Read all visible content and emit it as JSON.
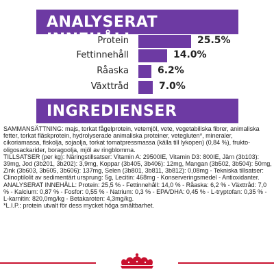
{
  "headings": {
    "analysis": "ANALYSERAT INNEHÅLL",
    "ingredients": "INGREDIENSER"
  },
  "nutrients": [
    {
      "label": "Protein",
      "value": "25.5%",
      "percent": 25.5
    },
    {
      "label": "Fettinnehåll",
      "value": "14.0%",
      "percent": 14.0
    },
    {
      "label": "Råaska",
      "value": "6.2%",
      "percent": 6.2
    },
    {
      "label": "Växttråd",
      "value": "7.0%",
      "percent": 7.0
    }
  ],
  "ingredients": {
    "composition": "SAMMANSÄTTNING: majs, torkat fågelprotein, vetemjöl, vete, vegetabiliska fibrer, animaliska fetter, torkat fläskprotein, hydrolyserade animaliska proteiner, vetegluten*, mineraler, cikoriamassa, fiskolja, sojaolja, torkat tomatpressmassa (källa till lykopen) (0,84 %), frukto-oligosackarider, boragoolja, mjöl av ringblomma.",
    "additives": "TILLSATSER (per kg): Näringstillsatser: Vitamin A: 29500IE, Vitamin D3: 800IE, Järn (3b103): 39mg, Jod (3b201, 3b202): 3,9mg, Koppar (3b405, 3b406): 12mg, Mangan (3b502, 3b504): 50mg, Zink (3b603, 3b605, 3b606): 137mg, Selen (3b801, 3b811, 3b812): 0,08mg - Tekniska tillsatser: Clinoptilolit av sedimentärt ursprung: 5g, Lecitin: 468mg - Konserveringsmedel - Antioxidanter.",
    "analysis": "ANALYSERAT INNEHÅLL: Protein: 25,5 % - Fettinnehåll: 14,0 % - Råaska: 6,2 % - Växttråd: 7,0 % - Kalcium: 0,87 % - Fosfor: 0,55 % - Natrium: 0,3 % - EPA/DHA: 0,45 % - L-tryptofan: 0,35 % - L-karnitin: 820,0mg/kg - Betakaroten: 4,3mg/kg.",
    "footnote": "*L.I.P.: protein utvalt för dess mycket höga smältbarhet."
  },
  "colors": {
    "accent": "#6d3aa3",
    "brand_red": "#c8102e"
  },
  "logo": {
    "icon": "crown-icon"
  }
}
